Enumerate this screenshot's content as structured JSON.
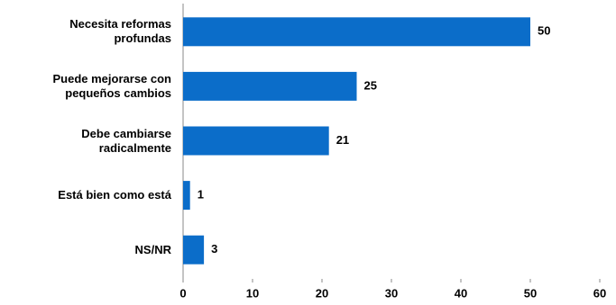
{
  "chart_data": {
    "type": "hbar",
    "categories": [
      "Necesita reformas profundas",
      "Puede mejorarse con pequeños cambios",
      "Debe cambiarse radicalmente",
      "Está bien como está",
      "NS/NR"
    ],
    "values": [
      50,
      25,
      21,
      1,
      3
    ],
    "color": "#0b6dc9",
    "xlim": [
      0,
      60
    ],
    "xticks": [
      0,
      10,
      20,
      30,
      40,
      50,
      60
    ]
  }
}
